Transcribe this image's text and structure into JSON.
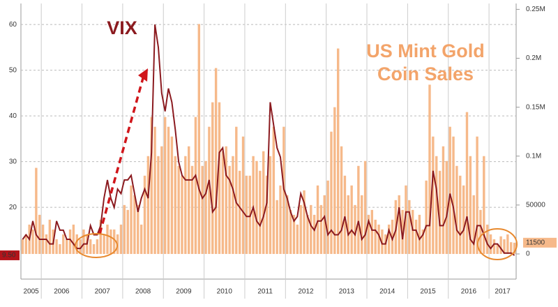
{
  "chart_data": {
    "type": "bar-line",
    "annotations": [
      "VIX",
      "US Mint Gold",
      "Coin Sales"
    ],
    "x_labels": [
      "2005",
      "2006",
      "2007",
      "2008",
      "2009",
      "2010",
      "2011",
      "2012",
      "2013",
      "2014",
      "2015",
      "2016",
      "2017"
    ],
    "first_year_months": 6,
    "ylim": [
      4.3,
      64.6
    ],
    "yticks": [
      20,
      30,
      40,
      50,
      60
    ],
    "y2lim": [
      -25700,
      256000
    ],
    "y2ticks": [
      0,
      50000,
      {
        "value": 100000,
        "label": "0.1M"
      },
      {
        "value": 150000,
        "label": "0.15M"
      },
      {
        "value": 200000,
        "label": "0.2M"
      },
      {
        "value": 250000,
        "label": "0.25M"
      }
    ],
    "grid": true,
    "series": [
      {
        "name": "VIX",
        "type": "line",
        "color": "#8b1a1f",
        "end_label": "9.50",
        "values": [
          13,
          14,
          13,
          17,
          14,
          13,
          13,
          13,
          12,
          12,
          17,
          15,
          15,
          13,
          13,
          12,
          11,
          11,
          12,
          12,
          16,
          14,
          14,
          16,
          22,
          26,
          22,
          20,
          24,
          23,
          26,
          26,
          27,
          23,
          19,
          22,
          24,
          22,
          32,
          60,
          55,
          45,
          41,
          46,
          43,
          37,
          30,
          27,
          26,
          26,
          26,
          27,
          24,
          22,
          23,
          26,
          19,
          20,
          32,
          33,
          27,
          26,
          24,
          21,
          20,
          19,
          18,
          18,
          20,
          17,
          16,
          18,
          21,
          43,
          38,
          33,
          31,
          24,
          22,
          19,
          17,
          18,
          23,
          21,
          18,
          16,
          15,
          17,
          17,
          18,
          14,
          15,
          14,
          14,
          15,
          18,
          14,
          15,
          14,
          17,
          13,
          14,
          17,
          15,
          15,
          14,
          12,
          12,
          15,
          13,
          15,
          20,
          13,
          19,
          19,
          15,
          15,
          13,
          14,
          16,
          16,
          28,
          24,
          16,
          16,
          18,
          23,
          20,
          15,
          14,
          15,
          18,
          13,
          12,
          16,
          16,
          14,
          12,
          11,
          12,
          12,
          11,
          10,
          10,
          10,
          9.5
        ]
      },
      {
        "name": "US Mint Gold Coin Sales",
        "type": "bar",
        "axis": "y2",
        "color": "#f6b98a",
        "values": [
          15000,
          20000,
          30000,
          25000,
          88000,
          40000,
          30000,
          20000,
          35000,
          25000,
          15000,
          10000,
          20000,
          15000,
          25000,
          30000,
          20000,
          15000,
          25000,
          20000,
          15000,
          10000,
          15000,
          35000,
          20000,
          30000,
          25000,
          25000,
          20000,
          30000,
          50000,
          45000,
          70000,
          60000,
          50000,
          30000,
          80000,
          100000,
          140000,
          130000,
          100000,
          110000,
          140000,
          130000,
          120000,
          100000,
          90000,
          80000,
          100000,
          110000,
          90000,
          140000,
          235000,
          90000,
          95000,
          130000,
          155000,
          190000,
          155000,
          105000,
          110000,
          90000,
          100000,
          130000,
          85000,
          120000,
          80000,
          80000,
          100000,
          95000,
          85000,
          105000,
          80000,
          100000,
          130000,
          55000,
          70000,
          130000,
          60000,
          45000,
          40000,
          30000,
          50000,
          65000,
          40000,
          50000,
          40000,
          70000,
          50000,
          60000,
          75000,
          125000,
          150000,
          210000,
          110000,
          80000,
          60000,
          70000,
          50000,
          90000,
          60000,
          95000,
          40000,
          45000,
          35000,
          30000,
          25000,
          20000,
          30000,
          35000,
          55000,
          60000,
          45000,
          70000,
          55000,
          45000,
          35000,
          40000,
          25000,
          75000,
          173000,
          120000,
          100000,
          85000,
          110000,
          95000,
          130000,
          120000,
          90000,
          80000,
          70000,
          145000,
          100000,
          60000,
          120000,
          45000,
          100000,
          30000,
          20000,
          15000,
          10000,
          18000,
          15000,
          20000,
          12000,
          11500
        ]
      }
    ]
  }
}
